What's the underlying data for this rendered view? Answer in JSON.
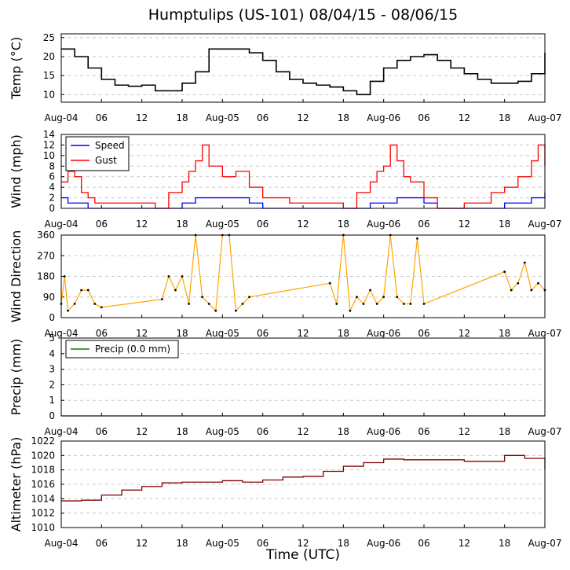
{
  "title": "Humptulips (US-101) 08/04/15 - 08/06/15",
  "xlabel": "Time (UTC)",
  "x_ticks": [
    "Aug-04",
    "06",
    "12",
    "18",
    "Aug-05",
    "06",
    "12",
    "18",
    "Aug-06",
    "06",
    "12",
    "18",
    "Aug-07"
  ],
  "chart_data": [
    {
      "type": "line",
      "ylabel": "Temp (°C)",
      "ylim": [
        8,
        26
      ],
      "yticks": [
        "10",
        "15",
        "20",
        "25"
      ],
      "grid": true,
      "x_unit": "hours since Aug-04 00 UTC",
      "series": [
        {
          "color": "#000000",
          "x": [
            0,
            1,
            2,
            4,
            6,
            8,
            10,
            12,
            14,
            16,
            18,
            20,
            22,
            24,
            26,
            28,
            30,
            32,
            34,
            36,
            38,
            40,
            42,
            44,
            46,
            48,
            50,
            52,
            54,
            56,
            58,
            60,
            62,
            64,
            66,
            68,
            70,
            72
          ],
          "y": [
            22,
            22,
            20,
            17,
            14,
            12.5,
            12.2,
            12.5,
            11,
            11,
            13,
            16,
            22,
            22,
            22,
            21,
            19,
            16,
            14,
            13,
            12.5,
            12,
            11,
            10,
            13.5,
            17,
            19,
            20,
            20.5,
            19,
            17,
            15.5,
            14,
            13,
            13,
            13.5,
            15.5,
            21
          ]
        }
      ]
    },
    {
      "type": "line",
      "ylabel": "Wind (mph)",
      "ylim": [
        0,
        14
      ],
      "yticks": [
        "0",
        "2",
        "4",
        "6",
        "8",
        "10",
        "12",
        "14"
      ],
      "grid": true,
      "legend": "top-left",
      "x_unit": "hours since Aug-04 00 UTC",
      "series": [
        {
          "name": "Speed",
          "color": "#0000ff",
          "x": [
            0,
            1,
            2,
            3,
            4,
            5,
            6,
            12,
            14,
            16,
            18,
            20,
            22,
            24,
            26,
            28,
            30,
            32,
            34,
            36,
            38,
            40,
            42,
            44,
            46,
            48,
            50,
            52,
            54,
            56,
            58,
            60,
            62,
            64,
            66,
            68,
            70,
            72
          ],
          "y": [
            2,
            1,
            1,
            1,
            0,
            0,
            0,
            0,
            0,
            0,
            1,
            2,
            2,
            2,
            2,
            1,
            0,
            0,
            0,
            0,
            0,
            0,
            0,
            0,
            1,
            1,
            2,
            2,
            1,
            0,
            0,
            0,
            0,
            0,
            1,
            1,
            2,
            3
          ]
        },
        {
          "name": "Gust",
          "color": "#ff0000",
          "x": [
            0,
            1,
            2,
            3,
            4,
            5,
            6,
            12,
            14,
            16,
            18,
            19,
            20,
            21,
            22,
            24,
            26,
            28,
            30,
            32,
            34,
            36,
            38,
            40,
            42,
            44,
            46,
            47,
            48,
            49,
            50,
            51,
            52,
            54,
            56,
            58,
            60,
            62,
            64,
            66,
            68,
            70,
            71,
            72
          ],
          "y": [
            5,
            7,
            6,
            3,
            2,
            1,
            1,
            1,
            0,
            3,
            5,
            7,
            9,
            12,
            8,
            6,
            7,
            4,
            2,
            2,
            1,
            1,
            1,
            1,
            0,
            3,
            5,
            7,
            8,
            12,
            9,
            6,
            5,
            2,
            0,
            0,
            1,
            1,
            3,
            4,
            6,
            9,
            12,
            8
          ]
        }
      ]
    },
    {
      "type": "scatter",
      "ylabel": "Wind Direction",
      "ylim": [
        0,
        360
      ],
      "yticks": [
        "0",
        "90",
        "180",
        "270",
        "360"
      ],
      "grid": true,
      "x_unit": "hours since Aug-04 00 UTC",
      "series": [
        {
          "color": "#ffa500",
          "x": [
            0,
            0.5,
            1,
            2,
            3,
            4,
            5,
            6,
            15,
            16,
            17,
            18,
            19,
            20,
            21,
            22,
            23,
            24,
            25,
            26,
            27,
            28,
            40,
            41,
            42,
            43,
            44,
            45,
            46,
            47,
            48,
            49,
            50,
            51,
            52,
            53,
            54,
            66,
            67,
            68,
            69,
            70,
            71,
            72
          ],
          "y": [
            60,
            180,
            30,
            60,
            120,
            120,
            60,
            45,
            80,
            180,
            120,
            180,
            60,
            360,
            90,
            60,
            30,
            360,
            360,
            30,
            60,
            90,
            150,
            60,
            360,
            30,
            90,
            60,
            120,
            60,
            90,
            360,
            90,
            60,
            60,
            345,
            60,
            200,
            120,
            150,
            240,
            120,
            150,
            120
          ]
        }
      ]
    },
    {
      "type": "line",
      "ylabel": "Precip (mm)",
      "ylim": [
        0,
        5
      ],
      "yticks": [
        "0",
        "1",
        "2",
        "3",
        "4",
        "5"
      ],
      "grid": true,
      "legend": "top-left",
      "x_unit": "hours since Aug-04 00 UTC",
      "series": [
        {
          "name": "Precip (0.0 mm)",
          "color": "#008000",
          "x": [
            0,
            72
          ],
          "y": [
            0,
            0
          ]
        }
      ]
    },
    {
      "type": "line",
      "ylabel": "Altimeter (hPa)",
      "ylim": [
        1010,
        1022
      ],
      "yticks": [
        "1010",
        "1012",
        "1014",
        "1016",
        "1018",
        "1020",
        "1022"
      ],
      "grid": true,
      "x_unit": "hours since Aug-04 00 UTC",
      "series": [
        {
          "color": "#800000",
          "x": [
            0,
            3,
            6,
            9,
            12,
            15,
            18,
            21,
            24,
            27,
            30,
            33,
            36,
            39,
            42,
            45,
            48,
            51,
            54,
            57,
            60,
            63,
            66,
            69,
            72
          ],
          "y": [
            1013.7,
            1013.8,
            1014.5,
            1015.2,
            1015.7,
            1016.2,
            1016.3,
            1016.3,
            1016.5,
            1016.3,
            1016.6,
            1017,
            1017.1,
            1017.8,
            1018.5,
            1019,
            1019.5,
            1019.4,
            1019.4,
            1019.4,
            1019.2,
            1019.2,
            1020,
            1019.6,
            1018
          ]
        }
      ]
    }
  ]
}
